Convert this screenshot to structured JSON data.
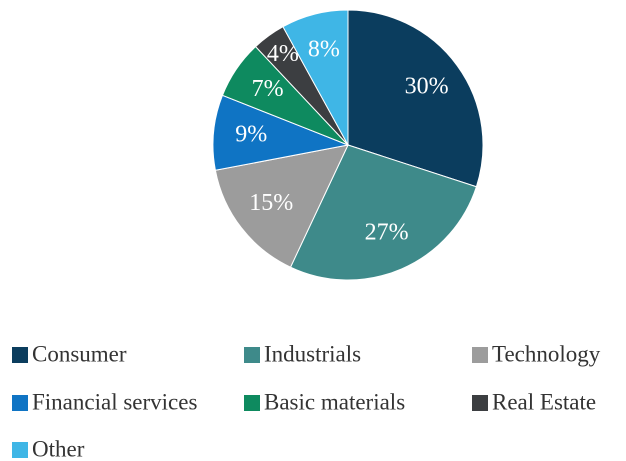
{
  "chart_data": {
    "type": "pie",
    "categories": [
      "Consumer",
      "Industrials",
      "Technology",
      "Financial services",
      "Basic materials",
      "Real Estate",
      "Other"
    ],
    "values": [
      30,
      27,
      15,
      9,
      7,
      4,
      8
    ],
    "value_labels": [
      "30%",
      "27%",
      "15%",
      "9%",
      "7%",
      "4%",
      "8%"
    ],
    "colors": [
      "#0b3d5e",
      "#3e8a8a",
      "#9c9c9c",
      "#0f74c4",
      "#0e8a5f",
      "#3c3e41",
      "#3fb6e6"
    ],
    "legend": "bottom"
  }
}
